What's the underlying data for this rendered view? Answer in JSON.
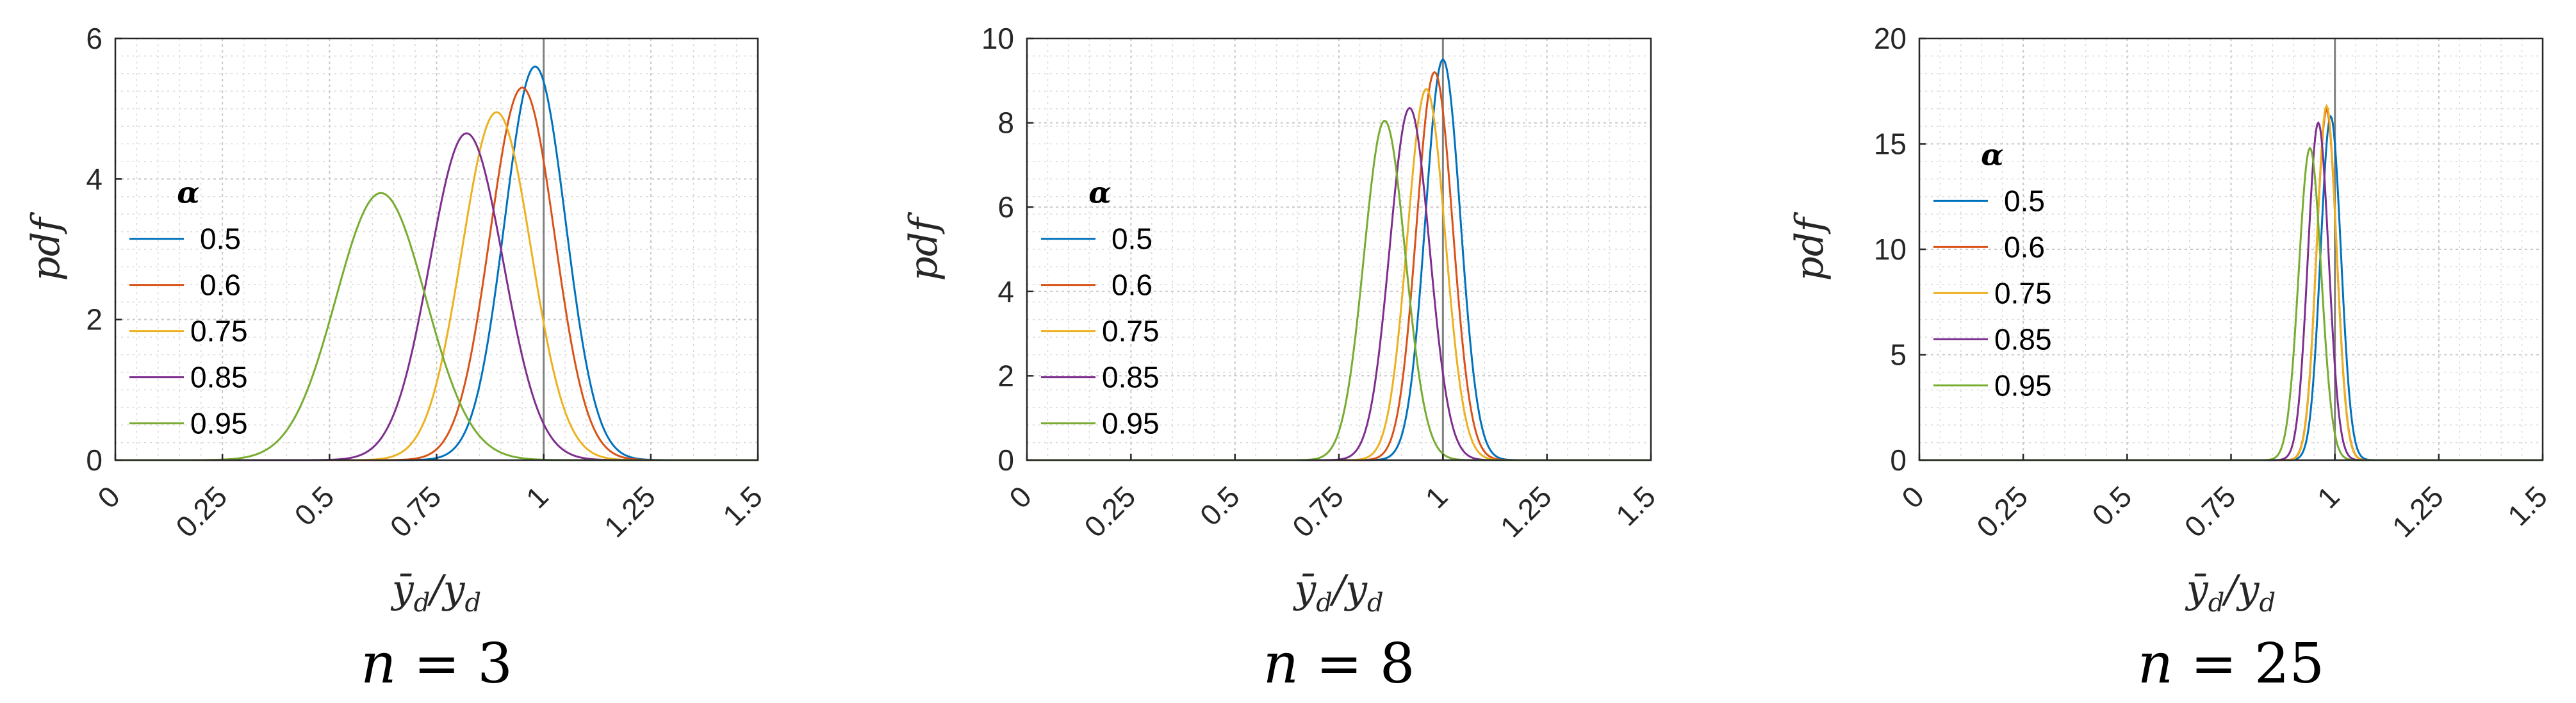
{
  "chart_data": [
    {
      "type": "line",
      "caption": {
        "var": "n",
        "eq": " = 3"
      },
      "xlabel": "ȳd/yd",
      "ylabel": "pdf",
      "xlim": [
        0,
        1.5
      ],
      "ylim": [
        0,
        6
      ],
      "xticks": [
        "0",
        "0.25",
        "0.5",
        "0.75",
        "1",
        "1.25",
        "1.5"
      ],
      "yticks": [
        "0",
        "2",
        "4",
        "6"
      ],
      "ref_x": 1,
      "grid": true,
      "legend": {
        "title": "α",
        "placement": "left"
      },
      "series": [
        {
          "name": "0.5",
          "mean": 0.98,
          "peak": 5.6,
          "color": "#0072BD"
        },
        {
          "name": "0.6",
          "mean": 0.95,
          "peak": 5.3,
          "color": "#D95319"
        },
        {
          "name": "0.75",
          "mean": 0.89,
          "peak": 4.95,
          "color": "#EDB120"
        },
        {
          "name": "0.85",
          "mean": 0.82,
          "peak": 4.65,
          "color": "#7E2F8E"
        },
        {
          "name": "0.95",
          "mean": 0.62,
          "peak": 3.8,
          "color": "#77AC30"
        }
      ]
    },
    {
      "type": "line",
      "caption": {
        "var": "n",
        "eq": " = 8"
      },
      "xlabel": "ȳd/yd",
      "ylabel": "pdf",
      "xlim": [
        0,
        1.5
      ],
      "ylim": [
        0,
        10
      ],
      "xticks": [
        "0",
        "0.25",
        "0.5",
        "0.75",
        "1",
        "1.25",
        "1.5"
      ],
      "yticks": [
        "0",
        "2",
        "4",
        "6",
        "8",
        "10"
      ],
      "ref_x": 1,
      "grid": true,
      "legend": {
        "title": "α",
        "placement": "left"
      },
      "series": [
        {
          "name": "0.5",
          "mean": 1.0,
          "peak": 9.5,
          "color": "#0072BD"
        },
        {
          "name": "0.6",
          "mean": 0.98,
          "peak": 9.2,
          "color": "#D95319"
        },
        {
          "name": "0.75",
          "mean": 0.96,
          "peak": 8.8,
          "color": "#EDB120"
        },
        {
          "name": "0.85",
          "mean": 0.92,
          "peak": 8.35,
          "color": "#7E2F8E"
        },
        {
          "name": "0.95",
          "mean": 0.86,
          "peak": 8.05,
          "color": "#77AC30"
        }
      ]
    },
    {
      "type": "line",
      "caption": {
        "var": "n",
        "eq": " = 25"
      },
      "xlabel": "ȳd/yd",
      "ylabel": "pdf",
      "xlim": [
        0,
        1.5
      ],
      "ylim": [
        0,
        20
      ],
      "xticks": [
        "0",
        "0.25",
        "0.5",
        "0.75",
        "1",
        "1.25",
        "1.5"
      ],
      "yticks": [
        "0",
        "5",
        "10",
        "15",
        "20"
      ],
      "ref_x": 1,
      "grid": true,
      "legend": {
        "title": "α",
        "placement": "left"
      },
      "series": [
        {
          "name": "0.5",
          "mean": 0.99,
          "peak": 16.3,
          "color": "#0072BD"
        },
        {
          "name": "0.6",
          "mean": 0.98,
          "peak": 16.6,
          "color": "#D95319"
        },
        {
          "name": "0.75",
          "mean": 0.98,
          "peak": 16.8,
          "color": "#EDB120"
        },
        {
          "name": "0.85",
          "mean": 0.96,
          "peak": 16.0,
          "color": "#7E2F8E"
        },
        {
          "name": "0.95",
          "mean": 0.94,
          "peak": 14.8,
          "color": "#77AC30"
        }
      ]
    }
  ]
}
